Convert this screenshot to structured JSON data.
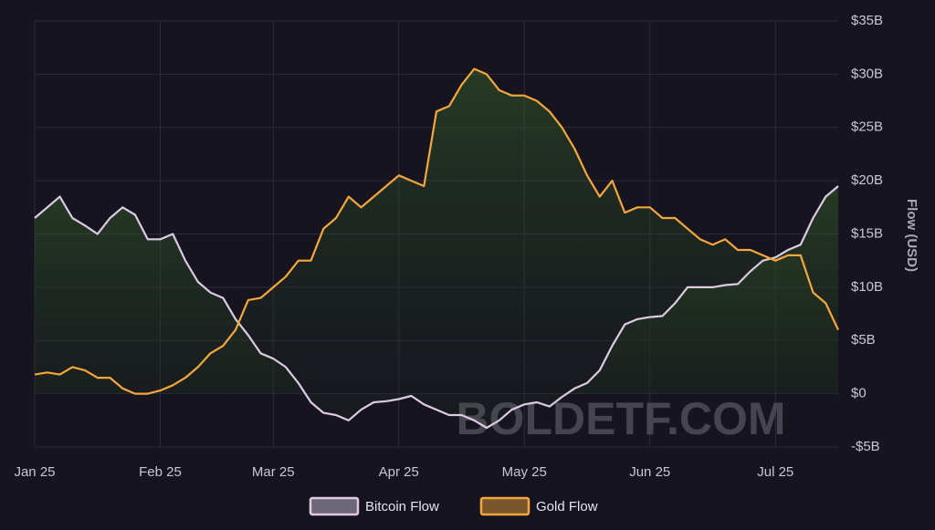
{
  "chart_data": {
    "type": "line",
    "y_label": "Flow (USD)",
    "watermark": "BOLDETF.COM",
    "categories": [
      "Jan 25",
      null,
      null,
      null,
      null,
      null,
      null,
      null,
      null,
      null,
      "Feb 25",
      null,
      null,
      null,
      null,
      null,
      null,
      null,
      null,
      "Mar 25",
      null,
      null,
      null,
      null,
      null,
      null,
      null,
      null,
      null,
      "Apr 25",
      null,
      null,
      null,
      null,
      null,
      null,
      null,
      null,
      null,
      "May 25",
      null,
      null,
      null,
      null,
      null,
      null,
      null,
      null,
      null,
      "Jun 25",
      null,
      null,
      null,
      null,
      null,
      null,
      null,
      null,
      null,
      "Jul 25",
      null,
      null,
      null,
      null,
      null
    ],
    "series": [
      {
        "name": "Bitcoin Flow",
        "color": "#dccbe3",
        "values": [
          16.5,
          17.5,
          18.5,
          16.5,
          15.8,
          15,
          16.5,
          17.5,
          16.8,
          14.5,
          14.5,
          15,
          12.5,
          10.5,
          9.5,
          9,
          7,
          5.5,
          3.8,
          3.3,
          2.5,
          1,
          -0.8,
          -1.8,
          -2,
          -2.5,
          -1.5,
          -0.8,
          -0.7,
          -0.5,
          -0.2,
          -1,
          -1.5,
          -2,
          -2,
          -2.5,
          -3.2,
          -2.5,
          -1.5,
          -1,
          -0.8,
          -1.2,
          -0.3,
          0.5,
          1,
          2.2,
          4.5,
          6.5,
          7,
          7.2,
          7.3,
          8.5,
          10,
          10,
          10,
          10.2,
          10.3,
          11.5,
          12.5,
          12.8,
          13.5,
          14,
          16.5,
          18.5,
          19.5
        ]
      },
      {
        "name": "Gold Flow",
        "color": "#f5a73c",
        "values": [
          1.8,
          2,
          1.8,
          2.5,
          2.2,
          1.5,
          1.5,
          0.5,
          0,
          0,
          0.3,
          0.8,
          1.5,
          2.5,
          3.8,
          4.5,
          6,
          8.8,
          9,
          10,
          11,
          12.5,
          12.5,
          15.5,
          16.5,
          18.5,
          17.5,
          18.5,
          19.5,
          20.5,
          20,
          19.5,
          26.5,
          27,
          29,
          30.5,
          30,
          28.5,
          28,
          28,
          27.5,
          26.5,
          25,
          23,
          20.5,
          18.5,
          20,
          17,
          17.5,
          17.5,
          16.5,
          16.5,
          15.5,
          14.5,
          14,
          14.5,
          13.5,
          13.5,
          13,
          12.5,
          13,
          13,
          9.5,
          8.5,
          6
        ]
      }
    ],
    "ylim": [
      -5,
      35
    ],
    "yticks": [
      {
        "value": -5,
        "label": "-$5B"
      },
      {
        "value": 0,
        "label": "$0"
      },
      {
        "value": 5,
        "label": "$5B"
      },
      {
        "value": 10,
        "label": "$10B"
      },
      {
        "value": 15,
        "label": "$15B"
      },
      {
        "value": 20,
        "label": "$20B"
      },
      {
        "value": 25,
        "label": "$25B"
      },
      {
        "value": 30,
        "label": "$30B"
      },
      {
        "value": 35,
        "label": "$35B"
      }
    ],
    "grid": true
  }
}
